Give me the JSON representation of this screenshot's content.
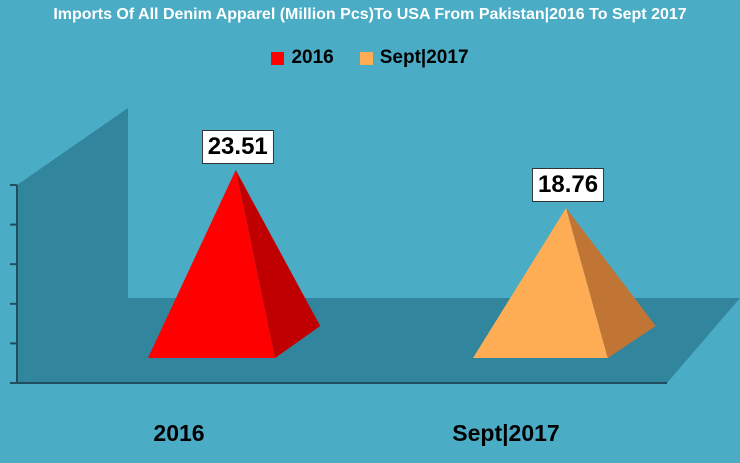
{
  "chart_data": {
    "type": "bar",
    "title": "Imports Of All Denim Apparel (Million Pcs)To USA From Pakistan|2016 To Sept 2017",
    "categories": [
      "2016",
      "Sept|2017"
    ],
    "series": [
      {
        "name": "2016",
        "values": [
          23.51,
          null
        ],
        "color": "#ff0000",
        "side_color": "#c00000"
      },
      {
        "name": "Sept|2017",
        "values": [
          null,
          18.76
        ],
        "color": "#ffad55",
        "side_color": "#c07535"
      }
    ],
    "data_labels": [
      "23.51",
      "18.76"
    ],
    "shape": "pyramid",
    "legend": "top-center",
    "ylim": [
      0,
      30
    ],
    "grid": false
  }
}
